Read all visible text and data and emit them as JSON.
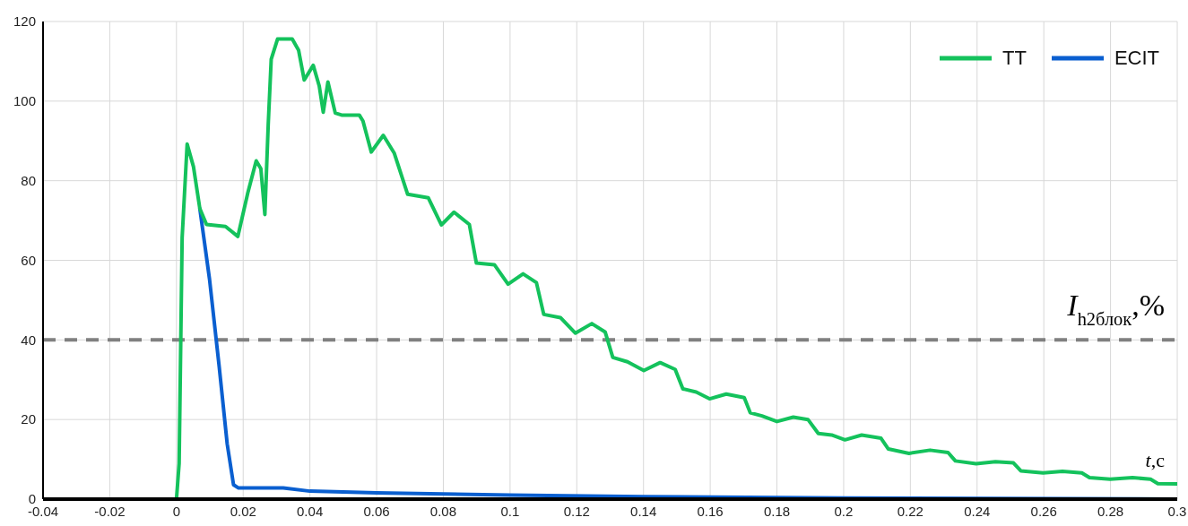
{
  "chart_data": {
    "type": "line",
    "xlabel": "t,c",
    "ylabel": "I$_{h2блок}$,%",
    "xlim": [
      -0.04,
      0.3
    ],
    "xticks": [
      -0.04,
      -0.02,
      0,
      0.02,
      0.04,
      0.06,
      0.08,
      0.1,
      0.12,
      0.14,
      0.16,
      0.18,
      0.2,
      0.22,
      0.24,
      0.26,
      0.28,
      0.3
    ],
    "ylim": [
      0,
      120
    ],
    "yticks": [
      0,
      20,
      40,
      60,
      80,
      100,
      120
    ],
    "grid": true,
    "legend": "top right",
    "line_style": "solid",
    "marker": "none",
    "ref_lines": [
      {
        "axis": "y",
        "value": 40,
        "color": "#808080",
        "line_style": "dashed"
      }
    ],
    "series": [
      {
        "name": "TT",
        "color": "#14c25c",
        "x": [
          -0.04,
          0,
          0.0008,
          0.0017,
          0.0032,
          0.0051,
          0.007,
          0.009,
          0.0147,
          0.0184,
          0.0214,
          0.0239,
          0.0253,
          0.0265,
          0.0275,
          0.0284,
          0.0303,
          0.0347,
          0.0366,
          0.0383,
          0.041,
          0.0428,
          0.044,
          0.0454,
          0.0476,
          0.0495,
          0.0548,
          0.0559,
          0.0584,
          0.062,
          0.0653,
          0.0693,
          0.0755,
          0.0794,
          0.0832,
          0.0878,
          0.0899,
          0.0953,
          0.0994,
          0.1039,
          0.1079,
          0.1101,
          0.1151,
          0.1196,
          0.1245,
          0.1285,
          0.1308,
          0.1352,
          0.1401,
          0.145,
          0.1495,
          0.1518,
          0.1558,
          0.1598,
          0.1648,
          0.1702,
          0.172,
          0.1755,
          0.18,
          0.1849,
          0.1893,
          0.1924,
          0.1964,
          0.2004,
          0.2054,
          0.2112,
          0.2134,
          0.2196,
          0.2259,
          0.2313,
          0.2335,
          0.2397,
          0.2455,
          0.2509,
          0.2531,
          0.2598,
          0.2656,
          0.2714,
          0.2737,
          0.2799,
          0.2866,
          0.292,
          0.2942,
          0.3
        ],
        "values": [
          0,
          0,
          9,
          65.7,
          89.2,
          83.5,
          73,
          69,
          68.5,
          66,
          77,
          85,
          83,
          71.5,
          94,
          110.5,
          115.6,
          115.6,
          112.8,
          105.3,
          109,
          103.8,
          97.2,
          104.8,
          97,
          96.5,
          96.5,
          95,
          87.2,
          91.4,
          86.9,
          76.6,
          75.7,
          68.9,
          72.1,
          69,
          59.3,
          58.9,
          54,
          56.6,
          54.4,
          46.4,
          45.6,
          41.7,
          44.1,
          42,
          35.6,
          34.5,
          32.3,
          34.3,
          32.6,
          27.7,
          26.9,
          25.2,
          26.4,
          25.5,
          21.7,
          20.9,
          19.5,
          20.6,
          20,
          16.5,
          16.1,
          14.9,
          16.1,
          15.3,
          12.6,
          11.5,
          12.3,
          11.7,
          9.6,
          8.9,
          9.4,
          9.1,
          7.1,
          6.6,
          7,
          6.6,
          5.4,
          5,
          5.4,
          5,
          3.9,
          3.8
        ]
      },
      {
        "name": "ECIT",
        "color": "#0a5fd0",
        "x": [
          0.007,
          0.0099,
          0.0128,
          0.0152,
          0.0171,
          0.0186,
          0.032,
          0.04,
          0.06,
          0.08,
          0.1,
          0.14,
          0.2,
          0.3
        ],
        "values": [
          73,
          55.3,
          33.3,
          13.9,
          3.6,
          2.8,
          2.8,
          2,
          1.6,
          1.3,
          1,
          0.6,
          0.3,
          0
        ]
      }
    ]
  }
}
